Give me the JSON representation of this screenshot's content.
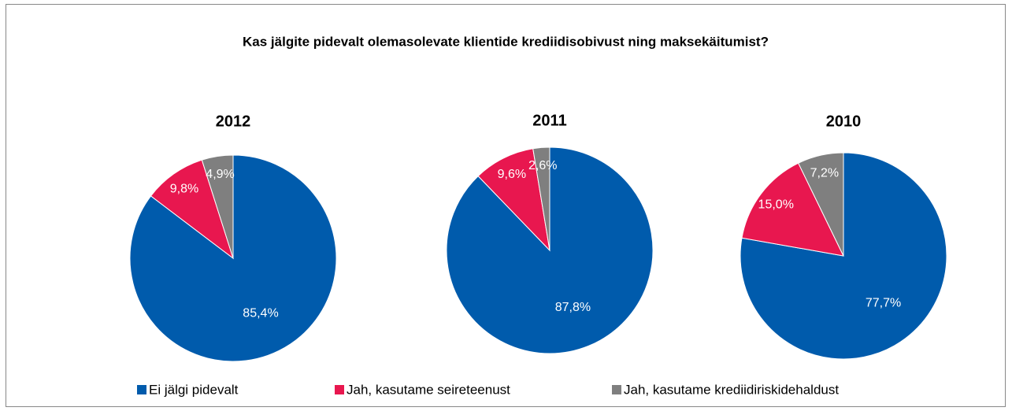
{
  "title": "Kas jälgite pidevalt olemasolevate klientide krediidisobivust ning maksekäitumist?",
  "chart_data": [
    {
      "type": "pie",
      "title": "2012",
      "categories": [
        "Ei jälgi pidevalt",
        "Jah, kasutame seireteenust",
        "Jah, kasutame krediidiriskidehaldust"
      ],
      "values": [
        85.4,
        9.8,
        4.9
      ],
      "value_labels": [
        "85,4%",
        "9,8%",
        "4,9%"
      ],
      "colors": [
        "#005bac",
        "#e8174f",
        "#7f7f7f"
      ]
    },
    {
      "type": "pie",
      "title": "2011",
      "categories": [
        "Ei jälgi pidevalt",
        "Jah, kasutame seireteenust",
        "Jah, kasutame krediidiriskidehaldust"
      ],
      "values": [
        87.8,
        9.6,
        2.6
      ],
      "value_labels": [
        "87,8%",
        "9,6%",
        "2,6%"
      ],
      "colors": [
        "#005bac",
        "#e8174f",
        "#7f7f7f"
      ]
    },
    {
      "type": "pie",
      "title": "2010",
      "categories": [
        "Ei jälgi pidevalt",
        "Jah, kasutame seireteenust",
        "Jah, kasutame krediidiriskidehaldust"
      ],
      "values": [
        77.7,
        15.0,
        7.2
      ],
      "value_labels": [
        "77,7%",
        "15,0%",
        "7,2%"
      ],
      "colors": [
        "#005bac",
        "#e8174f",
        "#7f7f7f"
      ]
    }
  ]
}
